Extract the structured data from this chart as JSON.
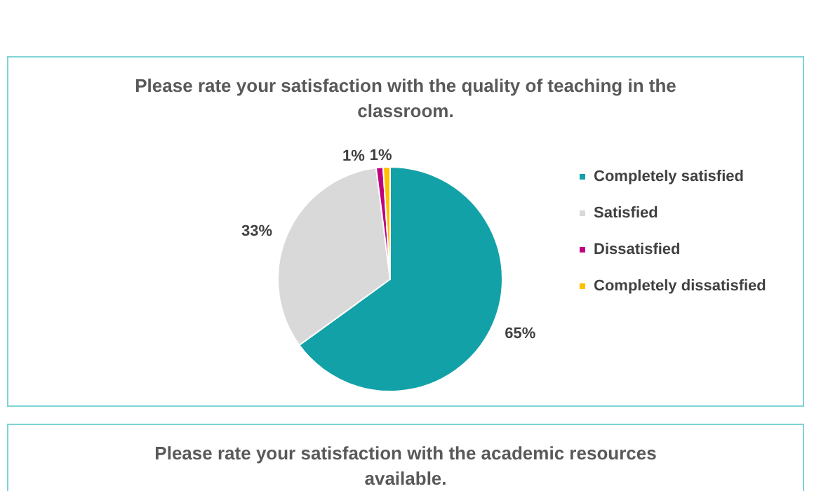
{
  "chart_data": [
    {
      "type": "pie",
      "title": "Please rate your satisfaction with the quality of teaching in the\nclassroom.",
      "categories": [
        "Completely satisfied",
        "Satisfied",
        "Dissatisfied",
        "Completely dissatisfied"
      ],
      "values": [
        65,
        33,
        1,
        1
      ],
      "colors": [
        "#13a1a8",
        "#d9d9d9",
        "#c00080",
        "#ffc000"
      ],
      "value_labels": [
        "65%",
        "33%",
        "1%",
        "1%"
      ],
      "legend": "right"
    },
    {
      "type": "other",
      "title": "Please rate your satisfaction with the academic resources\navailable."
    }
  ]
}
